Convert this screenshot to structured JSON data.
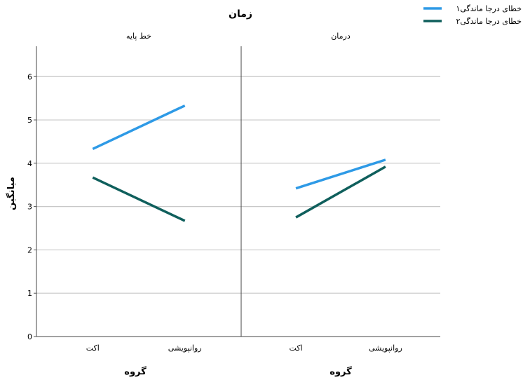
{
  "chart_data": {
    "type": "line",
    "title": "زمان",
    "ylabel": "میانگین",
    "xlabel": "گروه",
    "ylim": [
      0,
      6.7
    ],
    "yticks": [
      0,
      1,
      2,
      3,
      4,
      5,
      6
    ],
    "ytick_labels": [
      "0",
      "1",
      "2",
      "3",
      "4",
      "5",
      "6"
    ],
    "grid": true,
    "legend_position": "top-right",
    "categories": [
      "اکت",
      "روانپویشی"
    ],
    "panels": [
      {
        "title": "خط پایه",
        "series": [
          {
            "name": "خطای درجا ماندگی۱",
            "values": [
              4.33,
              5.33
            ]
          },
          {
            "name": "خطای درجا ماندگی۲",
            "values": [
              3.67,
              2.67
            ]
          }
        ]
      },
      {
        "title": "درمان",
        "series": [
          {
            "name": "خطای درجا ماندگی۱",
            "values": [
              3.42,
              4.08
            ]
          },
          {
            "name": "خطای درجا ماندگی۲",
            "values": [
              2.75,
              3.92
            ]
          }
        ]
      }
    ],
    "legend": [
      {
        "name": "خطای درجا ماندگی۱",
        "color": "#2e9ae6"
      },
      {
        "name": "خطای درجا ماندگی۲",
        "color": "#0f5f5c"
      }
    ]
  }
}
